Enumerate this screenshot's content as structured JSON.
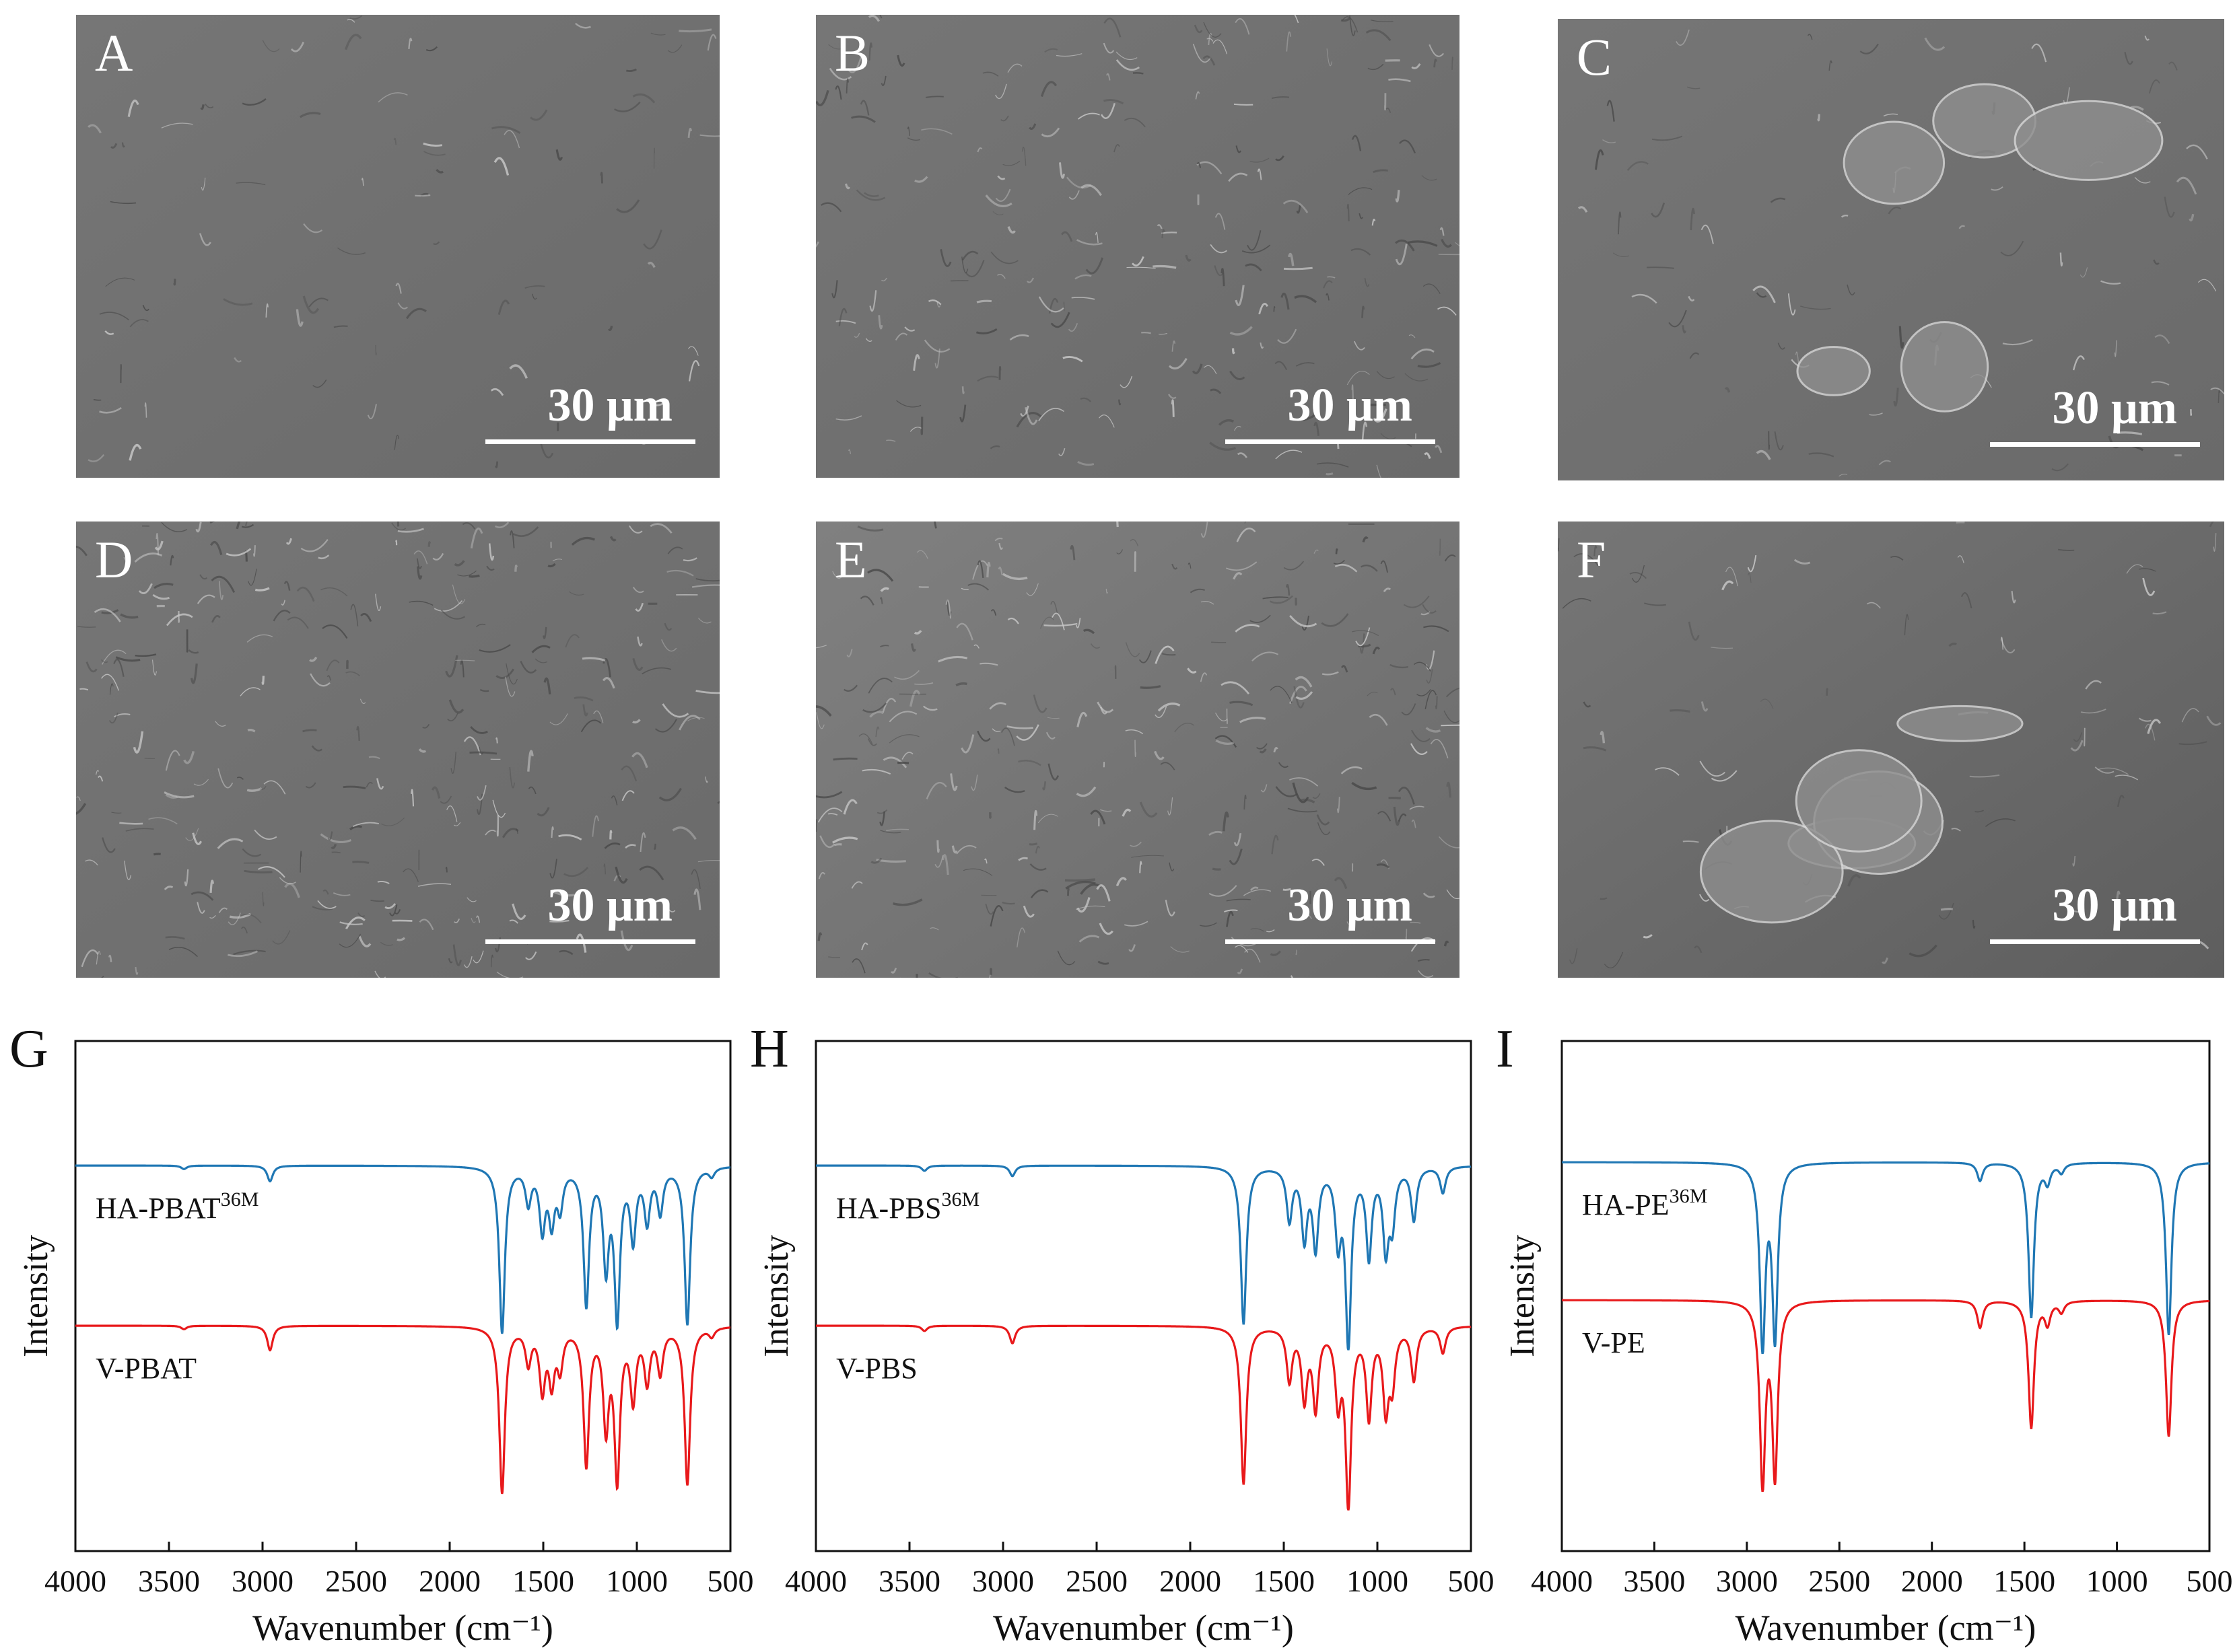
{
  "sem_panels": [
    {
      "label": "A",
      "scale": "30 μm"
    },
    {
      "label": "B",
      "scale": "30 μm"
    },
    {
      "label": "C",
      "scale": "30 μm"
    },
    {
      "label": "D",
      "scale": "30 μm"
    },
    {
      "label": "E",
      "scale": "30 μm"
    },
    {
      "label": "F",
      "scale": "30 μm"
    }
  ],
  "chart_data": [
    {
      "type": "line",
      "panel": "G",
      "xlabel": "Wavenumber (cm⁻¹)",
      "ylabel": "Intensity",
      "xlim": [
        4000,
        500
      ],
      "x_reversed": true,
      "xticks": [
        "4000",
        "3500",
        "3000",
        "2500",
        "2000",
        "1500",
        "1000",
        "500"
      ],
      "series": [
        {
          "name": "HA-PBAT",
          "name_sup": "36M",
          "color": "#1f77b4",
          "x": [
            4000,
            3420,
            2960,
            1720,
            1580,
            1505,
            1455,
            1410,
            1270,
            1165,
            1105,
            1020,
            945,
            875,
            730,
            600,
            500
          ],
          "y": [
            0.0,
            0.02,
            0.09,
            0.95,
            0.2,
            0.35,
            0.3,
            0.22,
            0.78,
            0.55,
            0.85,
            0.4,
            0.3,
            0.25,
            0.9,
            0.05,
            0.05
          ]
        },
        {
          "name": "V-PBAT",
          "color": "#e8191b",
          "x": [
            4000,
            3420,
            2960,
            1720,
            1580,
            1505,
            1455,
            1410,
            1270,
            1165,
            1105,
            1020,
            945,
            875,
            730,
            600,
            500
          ],
          "y": [
            0.0,
            0.02,
            0.14,
            0.95,
            0.2,
            0.35,
            0.3,
            0.22,
            0.78,
            0.55,
            0.85,
            0.4,
            0.3,
            0.25,
            0.9,
            0.05,
            0.05
          ]
        }
      ]
    },
    {
      "type": "line",
      "panel": "H",
      "xlabel": "Wavenumber (cm⁻¹)",
      "ylabel": "Intensity",
      "xlim": [
        4000,
        500
      ],
      "x_reversed": true,
      "xticks": [
        "4000",
        "3500",
        "3000",
        "2500",
        "2000",
        "1500",
        "1000",
        "500"
      ],
      "series": [
        {
          "name": "HA-PBS",
          "name_sup": "36M",
          "color": "#1f77b4",
          "x": [
            4000,
            3420,
            2950,
            1715,
            1470,
            1390,
            1330,
            1210,
            1155,
            1045,
            955,
            920,
            805,
            650,
            500
          ],
          "y": [
            0.0,
            0.03,
            0.06,
            0.9,
            0.3,
            0.4,
            0.45,
            0.4,
            1.0,
            0.5,
            0.45,
            0.3,
            0.3,
            0.15,
            0.15
          ]
        },
        {
          "name": "V-PBS",
          "color": "#e8191b",
          "x": [
            4000,
            3420,
            2950,
            1715,
            1470,
            1390,
            1330,
            1210,
            1155,
            1045,
            955,
            920,
            805,
            650,
            500
          ],
          "y": [
            0.0,
            0.03,
            0.1,
            0.9,
            0.3,
            0.4,
            0.45,
            0.4,
            1.0,
            0.5,
            0.45,
            0.3,
            0.3,
            0.15,
            0.15
          ]
        }
      ]
    },
    {
      "type": "line",
      "panel": "I",
      "xlabel": "Wavenumber (cm⁻¹)",
      "ylabel": "Intensity",
      "xlim": [
        4000,
        500
      ],
      "x_reversed": true,
      "xticks": [
        "4000",
        "3500",
        "3000",
        "2500",
        "2000",
        "1500",
        "1000",
        "500"
      ],
      "series": [
        {
          "name": "HA-PE",
          "name_sup": "36M",
          "color": "#1f77b4",
          "x": [
            4000,
            2915,
            2848,
            1740,
            1463,
            1375,
            1300,
            720,
            500
          ],
          "y": [
            0.0,
            1.0,
            0.95,
            0.1,
            0.85,
            0.1,
            0.05,
            0.95,
            0.02
          ]
        },
        {
          "name": "V-PE",
          "color": "#e8191b",
          "x": [
            4000,
            2915,
            2848,
            1740,
            1463,
            1375,
            1300,
            720,
            500
          ],
          "y": [
            0.0,
            1.0,
            0.95,
            0.15,
            0.7,
            0.12,
            0.06,
            0.75,
            0.02
          ]
        }
      ]
    }
  ]
}
